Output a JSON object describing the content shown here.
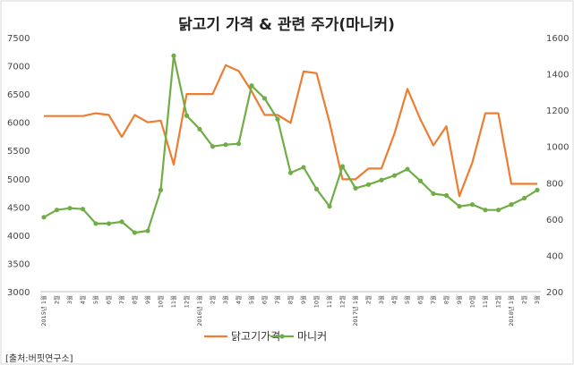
{
  "chart_data": {
    "type": "line",
    "title": "닭고기 가격 & 관련 주가(마니커)",
    "x": [
      "2015년 1월",
      "2월",
      "3월",
      "4월",
      "5월",
      "6월",
      "7월",
      "8월",
      "9월",
      "10월",
      "11월",
      "12월",
      "2016년 1월",
      "2월",
      "3월",
      "4월",
      "5월",
      "6월",
      "7월",
      "8월",
      "9월",
      "10월",
      "11월",
      "12월",
      "2017년 1월",
      "2월",
      "3월",
      "4월",
      "5월",
      "6월",
      "7월",
      "8월",
      "9월",
      "10월",
      "11월",
      "12월",
      "2018년 1월",
      "2월",
      "3월"
    ],
    "yleft": {
      "min": 3000,
      "max": 7500,
      "step": 500,
      "ticks": [
        "3000",
        "3500",
        "4000",
        "4500",
        "5000",
        "5500",
        "6000",
        "6500",
        "7000",
        "7500"
      ]
    },
    "yright": {
      "min": 200,
      "max": 1600,
      "step": 200,
      "ticks": [
        "200",
        "400",
        "600",
        "800",
        "1000",
        "1200",
        "1400",
        "1600"
      ]
    },
    "series": [
      {
        "name": "닭고기가격",
        "axis": "left",
        "color": "#ED7D31",
        "values": [
          6110,
          6110,
          6110,
          6110,
          6160,
          6130,
          5740,
          6130,
          6000,
          6030,
          5250,
          6500,
          6500,
          6500,
          7010,
          6910,
          6550,
          6130,
          6130,
          5990,
          6900,
          6870,
          6000,
          4990,
          4990,
          5180,
          5180,
          5800,
          6590,
          6050,
          5590,
          5930,
          4690,
          5290,
          6160,
          6160,
          4910,
          4910,
          4910
        ]
      },
      {
        "name": "마니커",
        "axis": "right",
        "color": "#70AD47",
        "values": [
          610,
          650,
          660,
          655,
          575,
          575,
          585,
          525,
          535,
          760,
          1500,
          1170,
          1095,
          1000,
          1010,
          1015,
          1335,
          1265,
          1150,
          855,
          885,
          765,
          670,
          890,
          770,
          790,
          815,
          840,
          875,
          810,
          740,
          730,
          670,
          680,
          650,
          650,
          680,
          715,
          760
        ]
      }
    ],
    "legend": {
      "position": "bottom"
    },
    "grid": false,
    "source": "[출처:버핏연구소]"
  }
}
